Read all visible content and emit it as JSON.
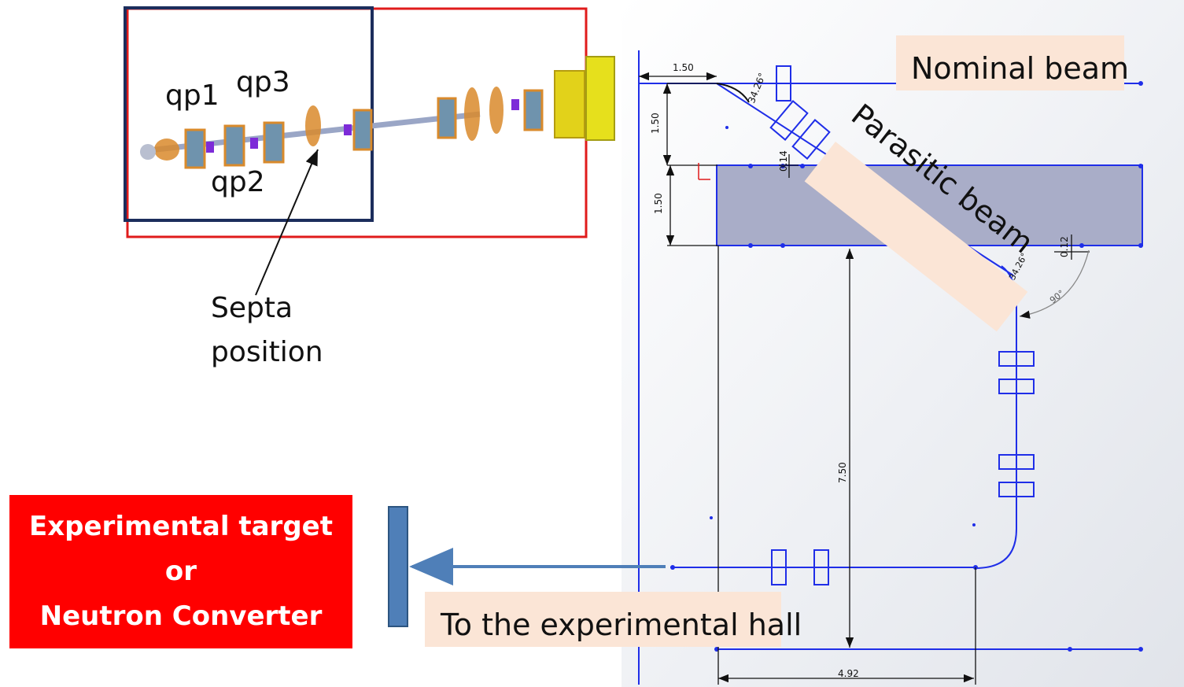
{
  "labels": {
    "nominal_beam": "Nominal beam",
    "parasitic_beam": "Parasitic beam",
    "to_hall": "To the experimental hall",
    "septa_line1": "Septa",
    "septa_line2": "position",
    "qp1": "qp1",
    "qp2": "qp2",
    "qp3": "qp3"
  },
  "target": {
    "line1": "Experimental target",
    "line2": "or",
    "line3": "Neutron Converter"
  },
  "dimensions": {
    "top_width": "1.50",
    "vert_upper": "1.50",
    "vert_lower": "1.50",
    "gap_upper": "0.14",
    "gap_lower": "0.12",
    "angle_upper": "34.26°",
    "angle_lower": "34.26°",
    "angle_bend": "90°",
    "vertical_long": "7.50",
    "bottom_width": "4.92"
  },
  "colors": {
    "sketch_line": "#1f2ee8",
    "target_red": "#ff0000",
    "label_fill": "#fbe5d6",
    "arrow_blue": "#4f7fb8",
    "block_fill": "#a9adc8"
  }
}
